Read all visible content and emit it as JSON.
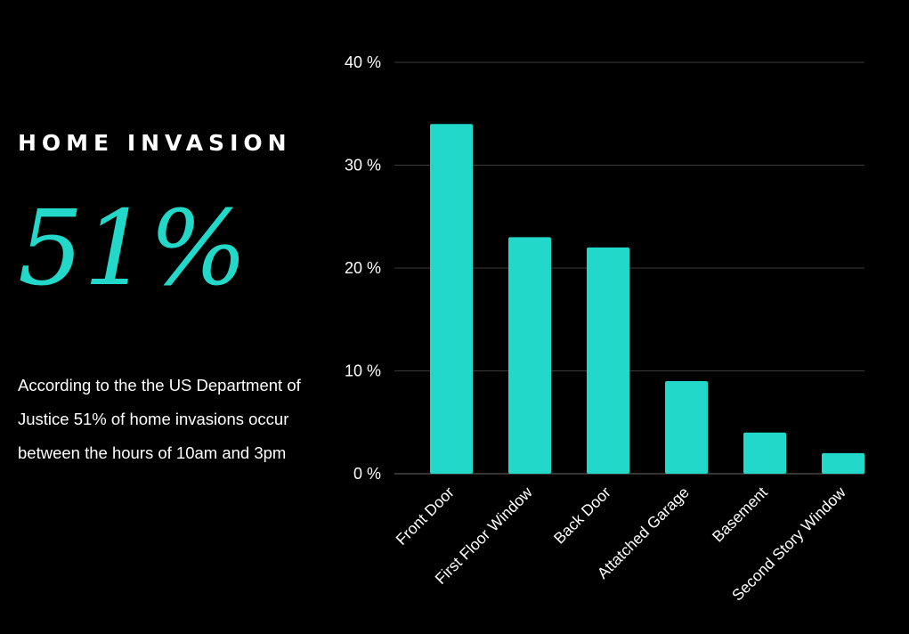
{
  "infographic": {
    "heading": "HOME INVASION",
    "big_stat": "51%",
    "description": "According to the the US Department of Justice 51% of home invasions occur between the hours of 10am and 3pm"
  },
  "colors": {
    "background": "#000000",
    "accent": "#22d8c8",
    "gridline": "#3a3a3a",
    "text": "#ffffff"
  },
  "chart_data": {
    "type": "bar",
    "categories": [
      "Front Door",
      "First Floor Window",
      "Back Door",
      "Attatched Garage",
      "Basement",
      "Second Story Window"
    ],
    "values": [
      34,
      23,
      22,
      9,
      4,
      2
    ],
    "ylim": [
      0,
      40
    ],
    "yticks": [
      0,
      10,
      20,
      30,
      40
    ],
    "ytick_labels": [
      "0 %",
      "10 %",
      "20 %",
      "30 %",
      "40 %"
    ],
    "grid": true,
    "legend": "none"
  }
}
